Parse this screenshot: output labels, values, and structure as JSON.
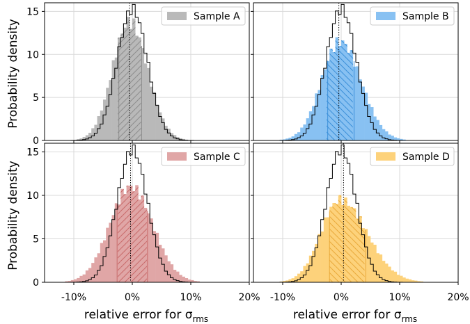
{
  "chart_data": {
    "type": "histogram-grid",
    "ylabel": "Probability density",
    "xlabel_main": "relative error for σ",
    "xlabel_sub": "rms",
    "xticks": [
      "-10%",
      "0%",
      "10%",
      "20%"
    ],
    "xtick_values": [
      -10,
      0,
      10,
      20
    ],
    "xlim": [
      -15,
      20
    ],
    "ylim": [
      0,
      16
    ],
    "yticks": [
      "0",
      "5",
      "10",
      "15"
    ],
    "ytick_values": [
      0,
      5,
      10,
      15
    ],
    "grid": true,
    "legend_placement": "top-right",
    "reference": {
      "description": "black outline histogram (same in every panel)",
      "center": 0,
      "sigma": 2.6,
      "peak": 15.3
    },
    "panels": [
      {
        "name": "Sample A",
        "color": "#b9b9b9",
        "edge": "#8c8c8c",
        "center": -0.5,
        "sigma_left": 2.9,
        "sigma_right": 3.1,
        "peak": 13.8,
        "vline": -0.5,
        "hatch_range": [
          -2.3,
          1.6
        ],
        "hatch": "/"
      },
      {
        "name": "Sample B",
        "color": "#88c1f2",
        "edge": "#3a8fd9",
        "center": -0.2,
        "sigma_left": 3.2,
        "sigma_right": 3.6,
        "peak": 11.5,
        "vline": -0.4,
        "hatch_range": [
          -2.3,
          2.2
        ],
        "hatch": "\\"
      },
      {
        "name": "Sample C",
        "color": "#e0a6a6",
        "edge": "#c86a6a",
        "center": -0.3,
        "sigma_left": 3.6,
        "sigma_right": 3.8,
        "peak": 11.0,
        "vline": -0.3,
        "hatch_range": [
          -2.6,
          2.6
        ],
        "hatch": "/"
      },
      {
        "name": "Sample D",
        "color": "#fdd27b",
        "edge": "#e9a93a",
        "center": -0.2,
        "sigma_left": 3.3,
        "sigma_right": 4.6,
        "peak": 9.5,
        "vline": 0.4,
        "hatch_range": [
          -2.0,
          4.2
        ],
        "hatch": "\\"
      }
    ]
  }
}
